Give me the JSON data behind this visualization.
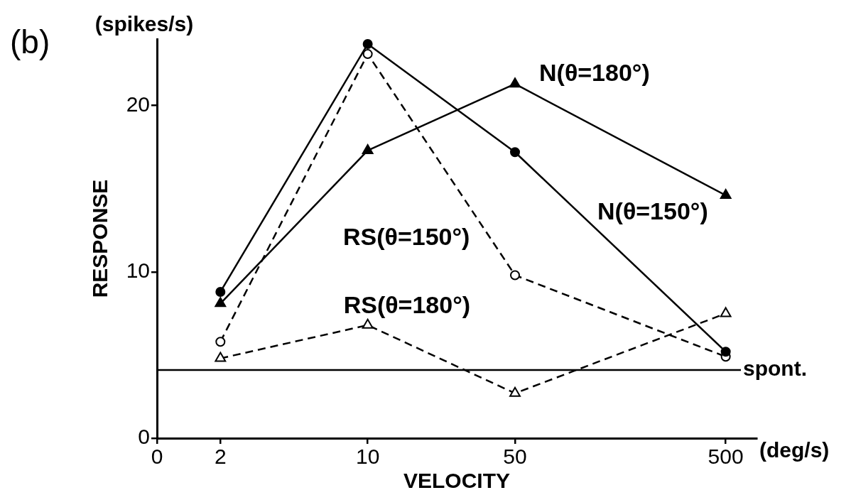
{
  "chart_data": {
    "type": "line",
    "xlabel": "VELOCITY",
    "ylabel": "RESPONSE",
    "annotations": [
      "(b)",
      "(spikes/s)",
      "(deg/s)"
    ],
    "x": [
      2,
      10,
      50,
      500
    ],
    "series": [
      {
        "name": "N(θ=150°)",
        "color": "#000000",
        "marker": "circle",
        "line_style": "solid",
        "values": [
          8.8,
          23.7,
          17.2,
          5.2
        ]
      },
      {
        "name": "N(θ=180°)",
        "color": "#000000",
        "marker": "triangle",
        "line_style": "solid",
        "values": [
          8.1,
          17.3,
          21.3,
          14.6
        ]
      },
      {
        "name": "RS(θ=150°)",
        "color": "#000000",
        "marker": "circle",
        "line_style": "dashed",
        "values": [
          5.8,
          23.1,
          9.8,
          4.9
        ]
      },
      {
        "name": "RS(θ=180°)",
        "color": "#000000",
        "marker": "triangle",
        "line_style": "dashed",
        "values": [
          4.8,
          6.8,
          2.7,
          7.5
        ]
      }
    ],
    "xlim": [
      0,
      700
    ],
    "xticks": [
      0,
      2,
      10,
      50,
      500
    ],
    "ylim": [
      0,
      24
    ],
    "yticks": [
      0,
      10,
      20
    ],
    "log": "x",
    "ref_lines": [
      {
        "axis": "y",
        "value": 4.1,
        "label": "spont."
      }
    ],
    "grid": false,
    "legend": false
  }
}
